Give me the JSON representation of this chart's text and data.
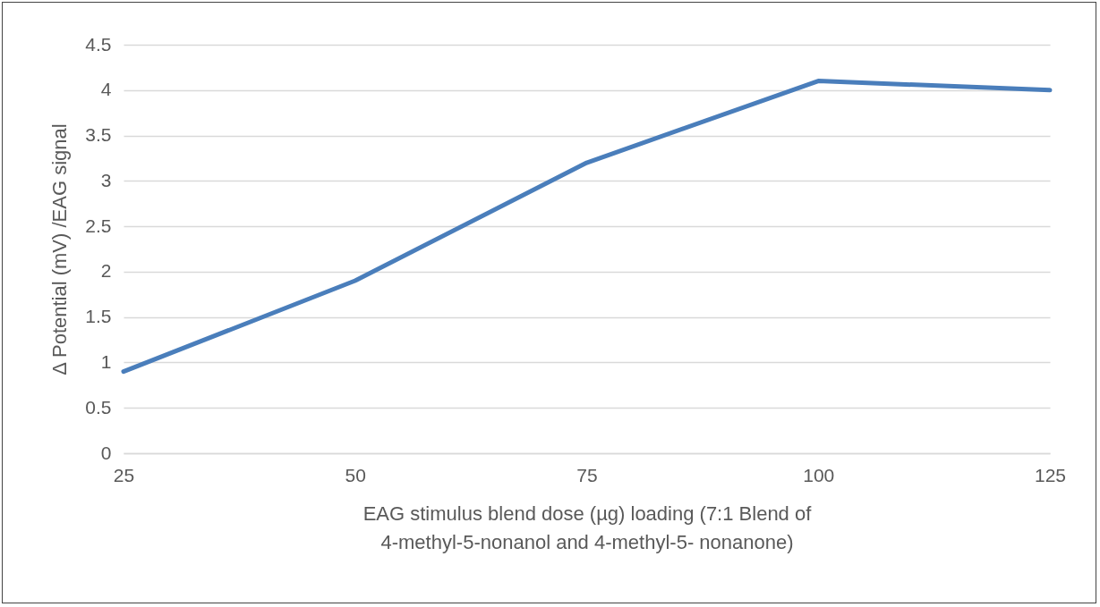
{
  "chart_data": {
    "type": "line",
    "categories": [
      "25",
      "50",
      "75",
      "100",
      "125"
    ],
    "series": [
      {
        "color": "#4a7ebb",
        "values": [
          0.9,
          1.9,
          3.2,
          4.1,
          4.0
        ]
      }
    ],
    "xlabel": "EAG stimulus blend dose (µg) loading (7:1 Blend of 4-methyl-5-nonanol and 4-methyl-5- nonanone)",
    "ylabel": "Δ Potential (mV) /EAG signal",
    "ylim": [
      0,
      4.5
    ],
    "yticks": [
      0,
      0.5,
      1,
      1.5,
      2,
      2.5,
      3,
      3.5,
      4,
      4.5
    ],
    "grid": "y",
    "marker": "none",
    "line_style": "solid"
  }
}
